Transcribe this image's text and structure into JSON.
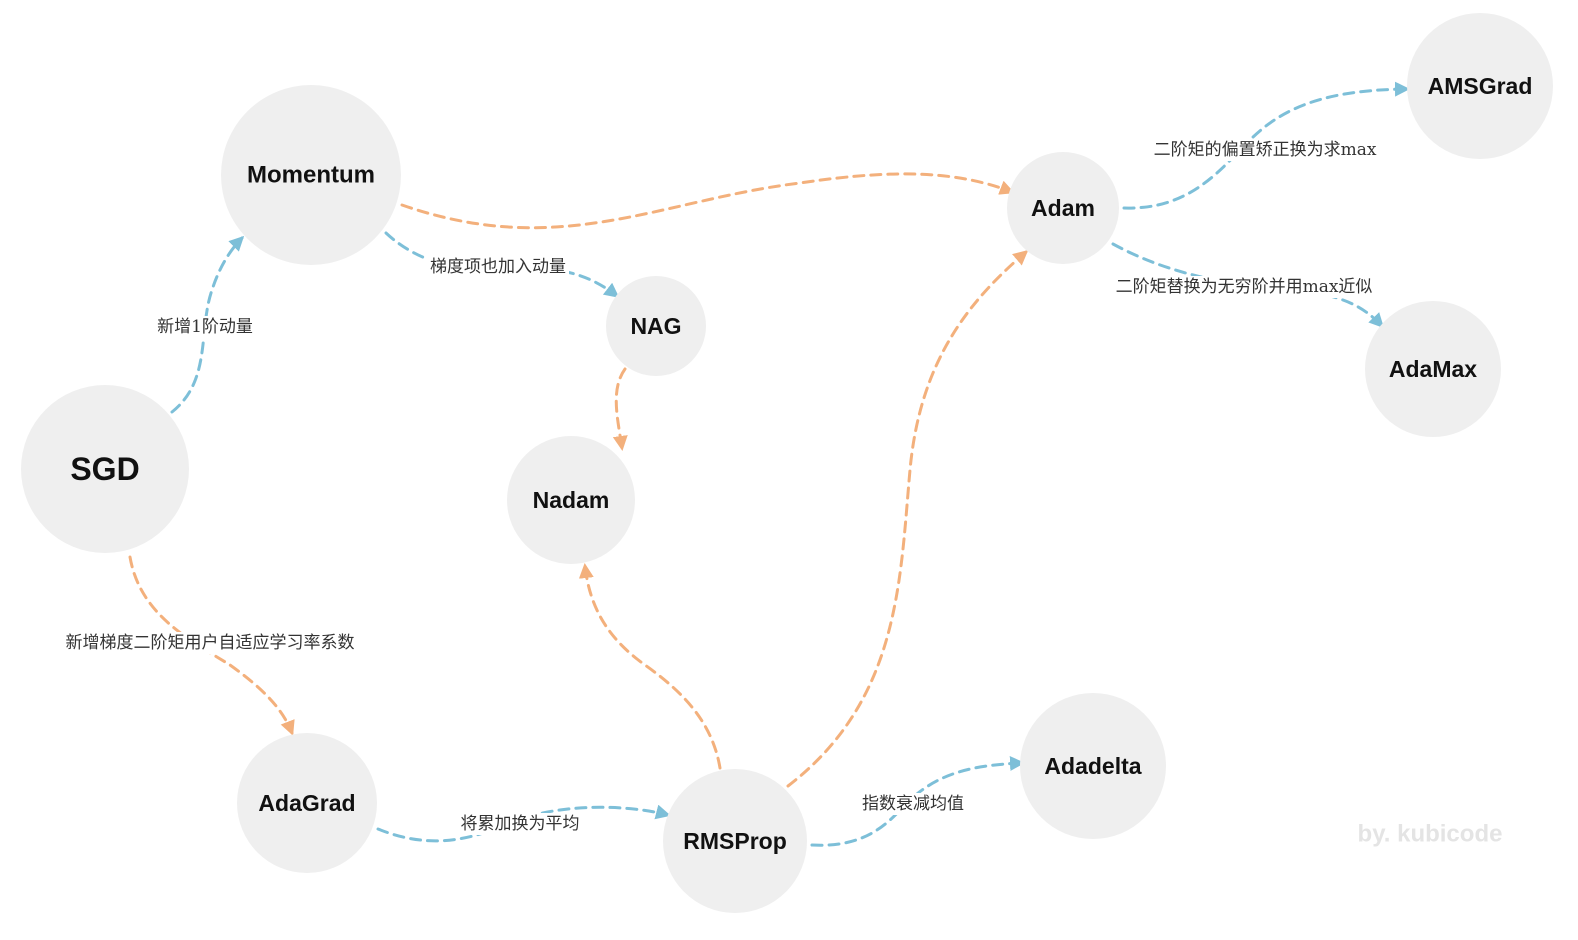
{
  "colors": {
    "node_fill": "#efefef",
    "edge_blue": "#7dbfd8",
    "edge_orange": "#f3b07c",
    "label_text": "#333333",
    "sgd_text": "#2b4a7e",
    "adam_text": "#e8141c",
    "default_node_text": "#111111",
    "watermark_text": "#e4e4e4"
  },
  "nodes": [
    {
      "id": "sgd",
      "label": "SGD",
      "color": "sgd_text"
    },
    {
      "id": "momentum",
      "label": "Momentum",
      "color": "default_node_text"
    },
    {
      "id": "nag",
      "label": "NAG",
      "color": "default_node_text"
    },
    {
      "id": "nadam",
      "label": "Nadam",
      "color": "default_node_text"
    },
    {
      "id": "adagrad",
      "label": "AdaGrad",
      "color": "default_node_text"
    },
    {
      "id": "rmsprop",
      "label": "RMSProp",
      "color": "default_node_text"
    },
    {
      "id": "adadelta",
      "label": "Adadelta",
      "color": "default_node_text"
    },
    {
      "id": "adam",
      "label": "Adam",
      "color": "adam_text"
    },
    {
      "id": "amsgrad",
      "label": "AMSGrad",
      "color": "default_node_text"
    },
    {
      "id": "adamax",
      "label": "AdaMax",
      "color": "default_node_text"
    }
  ],
  "edges": [
    {
      "id": "sgd-momentum",
      "from": "sgd",
      "to": "momentum",
      "color": "edge_blue",
      "label": "新增1阶动量"
    },
    {
      "id": "sgd-adagrad",
      "from": "sgd",
      "to": "adagrad",
      "color": "edge_orange",
      "label": "新增梯度二阶矩用户自适应学习率系数"
    },
    {
      "id": "momentum-nag",
      "from": "momentum",
      "to": "nag",
      "color": "edge_blue",
      "label": "梯度项也加入动量"
    },
    {
      "id": "momentum-adam",
      "from": "momentum",
      "to": "adam",
      "color": "edge_orange",
      "label": ""
    },
    {
      "id": "nag-nadam",
      "from": "nag",
      "to": "nadam",
      "color": "edge_orange",
      "label": ""
    },
    {
      "id": "adagrad-rmsprop",
      "from": "adagrad",
      "to": "rmsprop",
      "color": "edge_blue",
      "label": "将累加换为平均"
    },
    {
      "id": "rmsprop-nadam",
      "from": "rmsprop",
      "to": "nadam",
      "color": "edge_orange",
      "label": ""
    },
    {
      "id": "rmsprop-adam",
      "from": "rmsprop",
      "to": "adam",
      "color": "edge_orange",
      "label": ""
    },
    {
      "id": "rmsprop-adadelta",
      "from": "rmsprop",
      "to": "adadelta",
      "color": "edge_blue",
      "label": "指数衰减均值"
    },
    {
      "id": "adam-amsgrad",
      "from": "adam",
      "to": "amsgrad",
      "color": "edge_blue",
      "label": "二阶矩的偏置矫正换为求max"
    },
    {
      "id": "adam-adamax",
      "from": "adam",
      "to": "adamax",
      "color": "edge_blue",
      "label": "二阶矩替换为无穷阶并用max近似"
    }
  ],
  "watermark": "by. kubicode"
}
